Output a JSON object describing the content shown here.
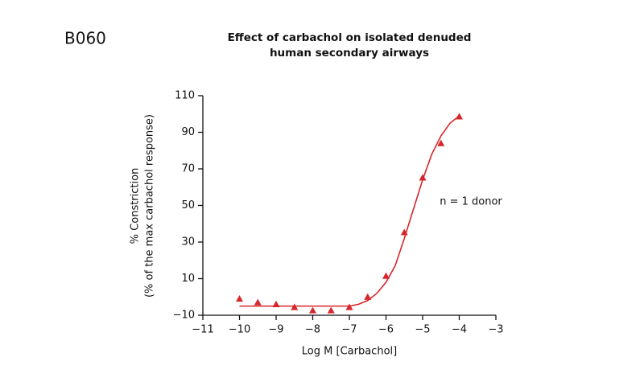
{
  "chart_data": {
    "type": "scatter",
    "label": "B060",
    "title": [
      "Effect of carbachol on isolated denuded",
      "human secondary airways"
    ],
    "annotation": "n = 1 donor",
    "xlabel": "Log M [Carbachol]",
    "ylabel": [
      "% Constriction",
      "(% of the max carbachol response)"
    ],
    "xlim": [
      -11,
      -3
    ],
    "xticks": [
      {
        "value": -11,
        "label": "−11"
      },
      {
        "value": -10,
        "label": "−10"
      },
      {
        "value": -9,
        "label": "−9"
      },
      {
        "value": -8,
        "label": "−8"
      },
      {
        "value": -7,
        "label": "−7"
      },
      {
        "value": -6,
        "label": "−6"
      },
      {
        "value": -5,
        "label": "−5"
      },
      {
        "value": -4,
        "label": "−4"
      },
      {
        "value": -3,
        "label": "−3"
      }
    ],
    "ylim": [
      -10,
      110
    ],
    "yticks": [
      {
        "value": -10,
        "label": "−10"
      },
      10,
      30,
      50,
      70,
      90,
      110
    ],
    "series": [
      {
        "mode": "markers",
        "marker": "triangle",
        "color": "#d7262b",
        "x": [
          -10,
          -9.5,
          -9,
          -8.5,
          -8,
          -7.5,
          -7,
          -6.5,
          -6,
          -5.5,
          -5,
          -4.5,
          -4
        ],
        "values": [
          -1,
          -3,
          -4,
          -5.6,
          -7.4,
          -7.4,
          -5.6,
          0,
          11.5,
          35.3,
          65.2,
          84,
          98.6
        ]
      },
      {
        "mode": "line",
        "color": "#d7262b",
        "x": [
          -10,
          -9,
          -8,
          -7.5,
          -7,
          -6.75,
          -6.5,
          -6.25,
          -6,
          -5.75,
          -5.5,
          -5.25,
          -5,
          -4.75,
          -4.5,
          -4.25,
          -4
        ],
        "values": [
          -5,
          -5,
          -5,
          -5,
          -5,
          -4,
          -2,
          2,
          8,
          17,
          32,
          48,
          64,
          78,
          88,
          95,
          99
        ]
      }
    ]
  }
}
